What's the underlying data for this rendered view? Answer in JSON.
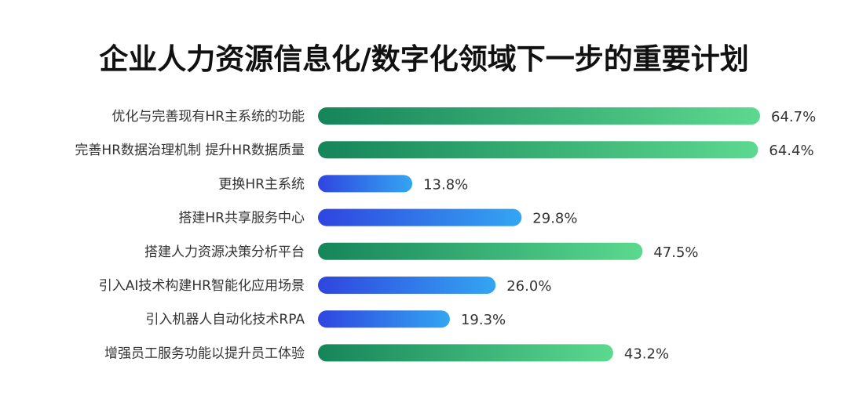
{
  "chart_data": {
    "type": "bar",
    "orientation": "horizontal",
    "title": "企业人力资源信息化/数字化领域下一步的重要计划",
    "xlabel": "",
    "ylabel": "",
    "unit": "%",
    "xlim": [
      0,
      64.7
    ],
    "grid": false,
    "legend": "none",
    "categories": [
      "优化与完善现有HR主系统的功能",
      "完善HR数据治理机制 提升HR数据质量",
      "更换HR主系统",
      "搭建HR共享服务中心",
      "搭建人力资源决策分析平台",
      "引入AI技术构建HR智能化应用场景",
      "引入机器人自动化技术RPA",
      "增强员工服务功能以提升员工体验"
    ],
    "values": [
      64.7,
      64.4,
      13.8,
      29.8,
      47.5,
      26.0,
      19.3,
      43.2
    ],
    "value_labels": [
      "64.7%",
      "64.4%",
      "13.8%",
      "29.8%",
      "47.5%",
      "26.0%",
      "19.3%",
      "43.2%"
    ],
    "bar_color_groups": [
      "green",
      "green",
      "blue",
      "blue",
      "green",
      "blue",
      "blue",
      "green"
    ],
    "colors": {
      "green_start": "#15855a",
      "green_end": "#5cd98f",
      "blue_start": "#2f45e0",
      "blue_end": "#33a6f2",
      "text": "#333333",
      "title": "#111111"
    }
  }
}
